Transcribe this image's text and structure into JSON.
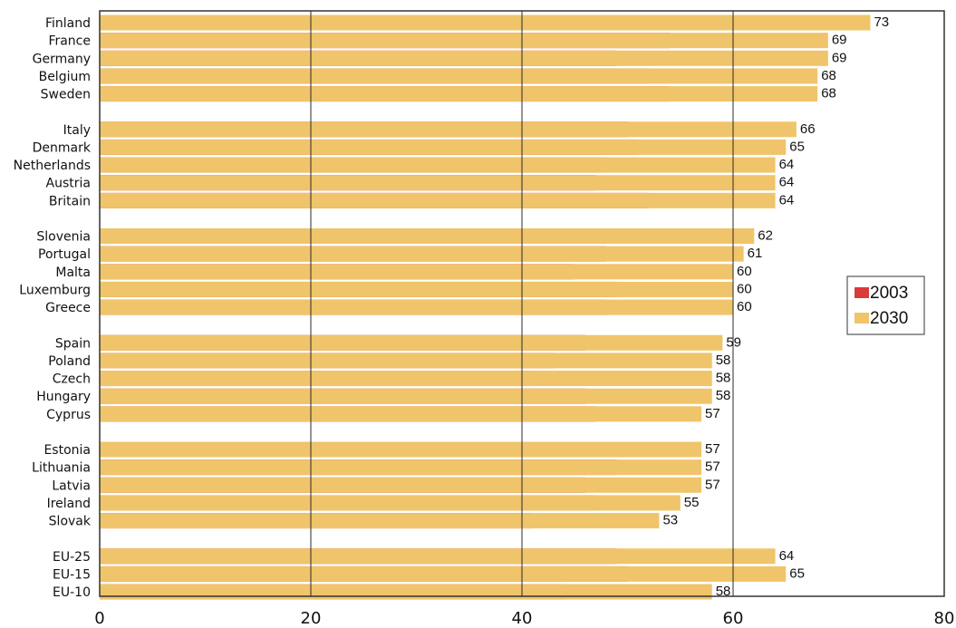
{
  "chart_data": {
    "type": "bar",
    "orientation": "horizontal",
    "stacked": false,
    "xlim": [
      0,
      80
    ],
    "xticks": [
      "0",
      "20",
      "40",
      "60",
      "80"
    ],
    "grid": "vertical",
    "legend_position": "right",
    "groups": [
      [
        "Finland",
        "France",
        "Germany",
        "Belgium",
        "Sweden"
      ],
      [
        "Italy",
        "Denmark",
        "Netherlands",
        "Austria",
        "Britain"
      ],
      [
        "Slovenia",
        "Portugal",
        "Malta",
        "Luxemburg",
        "Greece"
      ],
      [
        "Spain",
        "Poland",
        "Czech",
        "Hungary",
        "Cyprus"
      ],
      [
        "Estonia",
        "Lithuania",
        "Latvia",
        "Ireland",
        "Slovak"
      ],
      [
        "EU-25",
        "EU-15",
        "EU-10"
      ]
    ],
    "categories": [
      "Finland",
      "France",
      "Germany",
      "Belgium",
      "Sweden",
      "Italy",
      "Denmark",
      "Netherlands",
      "Austria",
      "Britain",
      "Slovenia",
      "Portugal",
      "Malta",
      "Luxemburg",
      "Greece",
      "Spain",
      "Poland",
      "Czech",
      "Hungary",
      "Cyprus",
      "Estonia",
      "Lithuania",
      "Latvia",
      "Ireland",
      "Slovak",
      "EU-25",
      "EU-15",
      "EU-10"
    ],
    "series": [
      {
        "name": "2003",
        "color": "#d93a3a",
        "values": [
          50,
          54,
          49,
          52,
          54,
          50,
          51,
          48,
          47,
          52,
          42,
          48,
          45,
          49,
          48,
          46,
          43,
          41,
          46,
          47,
          47,
          49,
          46,
          47,
          41,
          49,
          50,
          44
        ]
      },
      {
        "name": "2030",
        "color": "#f0c46a",
        "values": [
          73,
          69,
          69,
          68,
          68,
          66,
          65,
          64,
          64,
          64,
          62,
          61,
          60,
          60,
          60,
          59,
          58,
          58,
          58,
          57,
          57,
          57,
          57,
          55,
          53,
          64,
          65,
          58
        ]
      }
    ],
    "value_labels": [
      "73",
      "69",
      "69",
      "68",
      "68",
      "66",
      "65",
      "64",
      "64",
      "64",
      "62",
      "61",
      "60",
      "60",
      "60",
      "59",
      "58",
      "58",
      "58",
      "57",
      "57",
      "57",
      "57",
      "55",
      "53",
      "64",
      "65",
      "58"
    ]
  }
}
